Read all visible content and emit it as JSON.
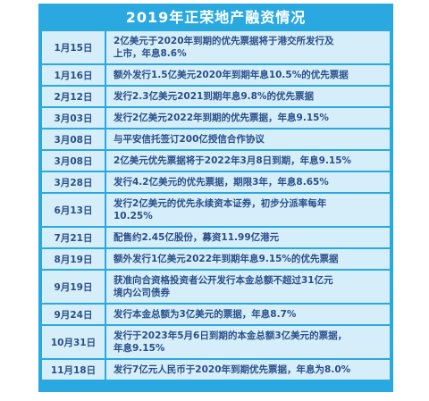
{
  "title": "2019年正荣地产融资情况",
  "rows": [
    {
      "date": "1月15日",
      "desc": "2亿美元于2020年到期的优先票据将于港交所发行及\n上市，年息8.6%"
    },
    {
      "date": "1月16日",
      "desc": "额外发行1.5亿美元2020年到期年息10.5%的优先票据"
    },
    {
      "date": "2月12日",
      "desc": "发行2.3亿美元2021到期年息9.8%的优先票据"
    },
    {
      "date": "3月03日",
      "desc": "发行2亿美元2022年到期的优先票据，年息9.15%"
    },
    {
      "date": "3月08日",
      "desc": "与平安信托签订200亿授信合作协议"
    },
    {
      "date": "3月08日",
      "desc": "2亿美元优先票据将于2022年3月8日到期，年息9.15%"
    },
    {
      "date": "3月28日",
      "desc": "发行4.2亿美元的优先票据，期限3年，年息8.65%"
    },
    {
      "date": "6月13日",
      "desc": "发行2亿美元的优先永续资本证券，初步分派率每年\n10.25%"
    },
    {
      "date": "7月21日",
      "desc": "配售约2.45亿股份，募资11.99亿港元"
    },
    {
      "date": "8月19日",
      "desc": "额外发行1亿美元2022年到期年息9.15%的优先票据"
    },
    {
      "date": "9月19日",
      "desc": "获准向合资格投资者公开发行本金总额不超过31亿元\n境内公司债券"
    },
    {
      "date": "9月24日",
      "desc": "发行本金总额为3亿美元的票据，年息8.7%"
    },
    {
      "date": "10月31日",
      "desc": "发行于2023年5月6日到期的本金总额3亿美元的票据，\n年息9.15%"
    },
    {
      "date": "11月18日",
      "desc": "发行7亿元人民币于2020年到期优先票据，年息为8.0%"
    }
  ]
}
